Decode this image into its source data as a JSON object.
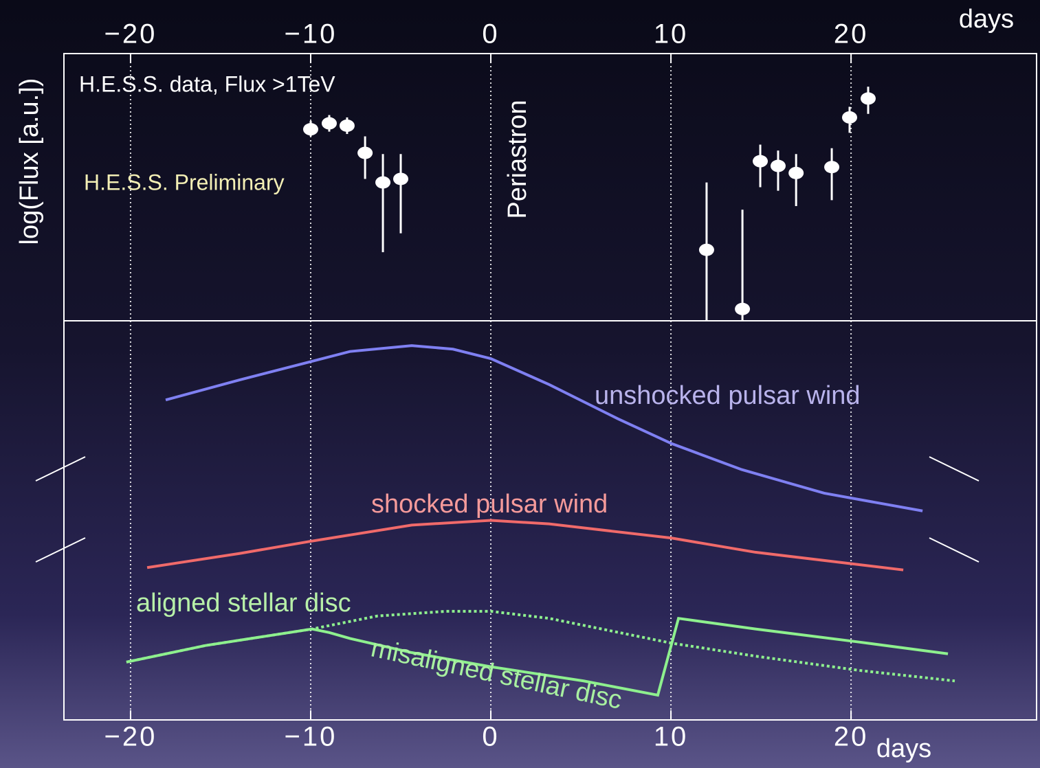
{
  "chart_data": [
    {
      "type": "scatter",
      "xlabel": "days",
      "ylabel": "log(Flux [a.u.])",
      "xlim": [
        -23.7,
        30.3
      ],
      "ylim": [
        0,
        2.26
      ],
      "xticks": [
        {
          "value": -20,
          "label": "−20"
        },
        {
          "value": -10,
          "label": "−10"
        },
        0,
        10,
        20
      ],
      "grid": true,
      "series": [
        {
          "name": "H.E.S.S. data, Flux >1TeV",
          "color": "#ffffff",
          "x": [
            -10.0,
            -8.97,
            -7.98,
            -6.98,
            -5.99,
            -5.0,
            11.98,
            13.97,
            14.96,
            15.95,
            16.95,
            18.93,
            19.92,
            20.95
          ],
          "values": [
            1.62,
            1.67,
            1.65,
            1.42,
            1.17,
            1.2,
            0.6,
            0.1,
            1.35,
            1.31,
            1.25,
            1.3,
            1.72,
            1.88
          ],
          "low": [
            1.56,
            1.6,
            1.58,
            1.2,
            0.58,
            0.74,
            0,
            0,
            1.13,
            1.1,
            0.97,
            1.02,
            1.59,
            1.75
          ],
          "high": [
            1.69,
            1.74,
            1.72,
            1.56,
            1.41,
            1.41,
            1.17,
            0.94,
            1.49,
            1.44,
            1.41,
            1.46,
            1.81,
            1.98
          ]
        }
      ],
      "annotations": [
        "H.E.S.S. Preliminary",
        "Periastron"
      ]
    },
    {
      "type": "line",
      "xlabel": "days",
      "xlim": [
        -23.7,
        30.3
      ],
      "ylim": [
        0,
        3.38
      ],
      "xticks": [
        {
          "value": -20,
          "label": "−20"
        },
        {
          "value": -10,
          "label": "−10"
        },
        0,
        10,
        20
      ],
      "grid": true,
      "series": [
        {
          "name": "unshocked pulsar wind",
          "color": "#7f80f2",
          "label_color": "#b9b3ec",
          "dash": "solid",
          "x": [
            -18.05,
            -13.93,
            -10.11,
            -7.82,
            -4.39,
            -2.1,
            0,
            3.24,
            7.06,
            10.04,
            13.93,
            18.51,
            23.97
          ],
          "values": [
            2.71,
            2.88,
            3.03,
            3.12,
            3.17,
            3.14,
            3.06,
            2.84,
            2.55,
            2.34,
            2.12,
            1.92,
            1.77
          ]
        },
        {
          "name": "shocked pulsar wind",
          "color": "#f06a6a",
          "label_color": "#f59a9a",
          "dash": "solid",
          "x": [
            -19.08,
            -13.93,
            -10.11,
            -4.39,
            0,
            3.24,
            10.04,
            14.69,
            22.9
          ],
          "values": [
            1.29,
            1.41,
            1.51,
            1.65,
            1.69,
            1.66,
            1.54,
            1.42,
            1.27
          ]
        },
        {
          "name": "aligned stellar disc",
          "color": "#8ef08e",
          "label_color": "#b7f0a8",
          "dash": "dotted",
          "x": [
            -20.23,
            -15.84,
            -9.92,
            -6.3,
            -2.48,
            0,
            3.24,
            10.04,
            14.69,
            20.42,
            25.76
          ],
          "values": [
            0.49,
            0.63,
            0.77,
            0.88,
            0.92,
            0.92,
            0.86,
            0.65,
            0.54,
            0.42,
            0.33
          ]
        },
        {
          "name": "misaligned stellar disc",
          "color": "#8ef08e",
          "label_color": "#a8f0a0",
          "dash": "solid",
          "x": [
            -20.23,
            -15.84,
            -9.92,
            -8.97,
            -7.82,
            -4.39,
            0,
            5.15,
            9.27,
            10.42,
            14.69,
            20.42,
            25.38
          ],
          "values": [
            0.49,
            0.63,
            0.77,
            0.74,
            0.69,
            0.57,
            0.45,
            0.33,
            0.21,
            0.86,
            0.77,
            0.66,
            0.56
          ]
        }
      ]
    }
  ]
}
